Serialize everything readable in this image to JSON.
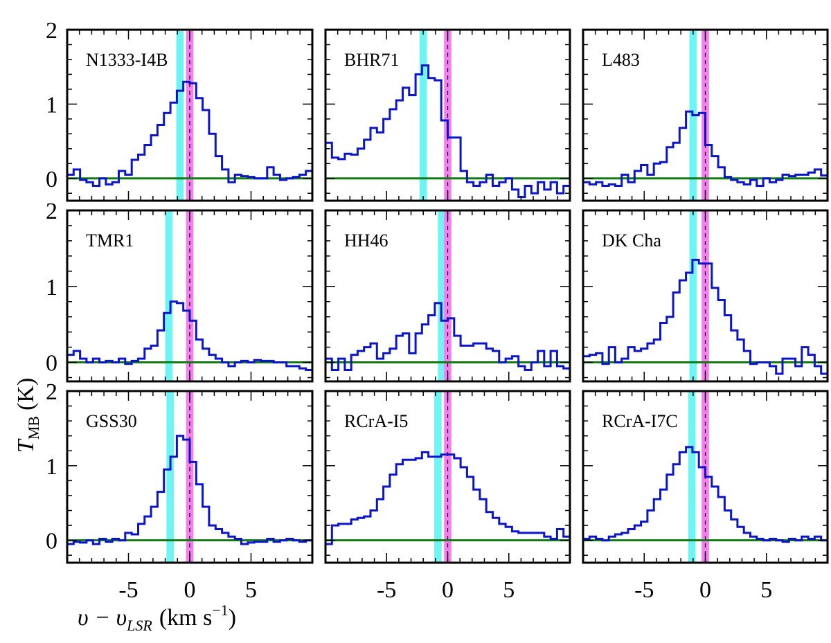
{
  "chart_data": {
    "type": "line",
    "layout": "3x3 grid of step spectra",
    "x_axis": {
      "label_main": "υ − υ",
      "label_sub": "LSR",
      "label_unit": "(km s",
      "label_exp": "−1",
      "label_close": ")",
      "range": [
        -10,
        10
      ],
      "ticks": [
        -5,
        0,
        5
      ],
      "tick_labels": [
        "-5",
        "0",
        "5"
      ]
    },
    "y_axis": {
      "label_main": "T",
      "label_sub": "MB",
      "label_unit": "(K)",
      "ticks": [
        0,
        1,
        2
      ],
      "tick_labels": [
        "0",
        "1",
        "2"
      ]
    },
    "colors": {
      "spectrum": "#0a14c8",
      "baseline": "#137a13",
      "cyan_band": "#6ff4f4",
      "magenta_band": "#f57ff0",
      "frame": "#000000"
    },
    "band_width_kms": 0.6,
    "panels": [
      {
        "name": "N1333-I4B",
        "ylim": [
          -0.3,
          2.0
        ],
        "cyan_v": -0.8,
        "magenta_v": 0.0,
        "y": [
          0.05,
          0.12,
          -0.02,
          -0.05,
          -0.1,
          0.0,
          -0.08,
          -0.05,
          0.1,
          0.05,
          0.25,
          0.32,
          0.45,
          0.58,
          0.72,
          0.88,
          1.02,
          1.18,
          1.3,
          1.28,
          1.08,
          0.92,
          0.6,
          0.3,
          0.12,
          -0.05,
          0.05,
          0.03,
          0.02,
          0.0,
          0.0,
          0.15,
          0.05,
          -0.02,
          0.0,
          0.02,
          0.05,
          0.1
        ]
      },
      {
        "name": "BHR71",
        "ylim": [
          -0.3,
          2.0
        ],
        "cyan_v": -2.0,
        "magenta_v": 0.0,
        "y": [
          0.48,
          0.28,
          0.26,
          0.33,
          0.32,
          0.4,
          0.52,
          0.68,
          0.62,
          0.8,
          0.93,
          1.05,
          1.22,
          1.12,
          1.4,
          1.52,
          1.35,
          1.32,
          0.78,
          0.55,
          0.55,
          0.1,
          -0.05,
          -0.1,
          -0.05,
          0.05,
          -0.1,
          -0.05,
          0.0,
          -0.15,
          -0.25,
          -0.1,
          -0.2,
          -0.05,
          -0.15,
          -0.05,
          -0.2,
          -0.1
        ]
      },
      {
        "name": "L483",
        "ylim": [
          -0.3,
          2.0
        ],
        "cyan_v": -1.0,
        "magenta_v": 0.0,
        "y": [
          -0.05,
          -0.08,
          -0.05,
          -0.1,
          -0.08,
          -0.1,
          0.05,
          -0.05,
          0.1,
          0.18,
          0.05,
          0.2,
          0.22,
          0.42,
          0.48,
          0.68,
          0.9,
          0.85,
          0.88,
          0.45,
          0.3,
          0.15,
          0.02,
          -0.02,
          -0.05,
          -0.08,
          -0.02,
          -0.1,
          0.0,
          -0.05,
          -0.02,
          0.05,
          0.03,
          0.05,
          0.05,
          0.08,
          0.12,
          0.04
        ]
      },
      {
        "name": "TMR1",
        "ylim": [
          -0.25,
          2.0
        ],
        "cyan_v": -1.7,
        "magenta_v": 0.0,
        "y": [
          0.1,
          0.15,
          0.05,
          0.0,
          0.05,
          0.0,
          0.02,
          0.0,
          0.05,
          -0.02,
          0.02,
          0.05,
          0.18,
          0.22,
          0.42,
          0.65,
          0.8,
          0.78,
          0.68,
          0.55,
          0.3,
          0.18,
          0.1,
          0.05,
          0.0,
          -0.05,
          0.0,
          0.02,
          0.0,
          0.03,
          0.02,
          0.02,
          0.0,
          0.0,
          -0.05,
          -0.05,
          -0.08,
          -0.1
        ]
      },
      {
        "name": "HH46",
        "ylim": [
          -0.25,
          2.0
        ],
        "cyan_v": -0.5,
        "magenta_v": 0.0,
        "y": [
          0.05,
          -0.1,
          0.05,
          -0.1,
          0.1,
          0.15,
          0.2,
          0.25,
          0.05,
          0.12,
          0.18,
          0.35,
          0.38,
          0.12,
          0.38,
          0.5,
          0.62,
          0.78,
          0.55,
          0.58,
          0.35,
          0.22,
          0.22,
          0.25,
          0.25,
          0.18,
          0.15,
          0.0,
          0.05,
          0.08,
          -0.05,
          -0.1,
          0.0,
          0.15,
          -0.05,
          0.15,
          -0.05,
          -0.08
        ]
      },
      {
        "name": "DK Cha",
        "ylim": [
          -0.25,
          2.0
        ],
        "cyan_v": -1.0,
        "magenta_v": 0.0,
        "y": [
          0.08,
          0.1,
          0.12,
          -0.02,
          0.2,
          0.0,
          0.05,
          0.2,
          0.15,
          0.18,
          0.25,
          0.3,
          0.52,
          0.6,
          0.92,
          1.08,
          1.18,
          1.35,
          1.3,
          1.3,
          0.98,
          0.82,
          0.62,
          0.42,
          0.3,
          0.15,
          -0.02,
          0.0,
          0.0,
          -0.05,
          -0.15,
          0.05,
          0.05,
          -0.05,
          0.2,
          0.1,
          -0.05,
          -0.15
        ]
      },
      {
        "name": "GSS30",
        "ylim": [
          -0.3,
          2.0
        ],
        "cyan_v": -1.6,
        "magenta_v": 0.0,
        "y": [
          -0.05,
          -0.02,
          -0.03,
          0.0,
          -0.05,
          0.02,
          -0.02,
          0.02,
          0.0,
          0.1,
          0.08,
          0.22,
          0.32,
          0.45,
          0.65,
          0.95,
          1.12,
          1.4,
          1.35,
          1.05,
          0.75,
          0.45,
          0.2,
          0.15,
          0.1,
          0.05,
          0.02,
          -0.05,
          -0.03,
          -0.02,
          -0.02,
          0.02,
          -0.02,
          0.0,
          0.02,
          0.0,
          -0.02,
          0.0
        ]
      },
      {
        "name": "RCrA-I5",
        "ylim": [
          -0.3,
          2.0
        ],
        "cyan_v": -0.8,
        "magenta_v": 0.0,
        "y": [
          -0.05,
          0.2,
          0.22,
          0.22,
          0.28,
          0.3,
          0.32,
          0.4,
          0.55,
          0.72,
          0.88,
          1.02,
          1.08,
          1.08,
          1.1,
          1.18,
          1.12,
          1.12,
          1.15,
          1.15,
          1.1,
          0.98,
          0.85,
          0.68,
          0.55,
          0.38,
          0.3,
          0.22,
          0.18,
          0.12,
          0.1,
          0.1,
          0.1,
          0.1,
          0.05,
          0.02,
          0.15,
          0.05
        ]
      },
      {
        "name": "RCrA-I7C",
        "ylim": [
          -0.3,
          2.0
        ],
        "cyan_v": -1.1,
        "magenta_v": 0.0,
        "y": [
          0.02,
          0.05,
          0.02,
          0.0,
          0.05,
          0.08,
          0.1,
          0.15,
          0.2,
          0.25,
          0.4,
          0.55,
          0.68,
          0.88,
          1.02,
          1.18,
          1.25,
          1.18,
          0.98,
          0.85,
          0.72,
          0.58,
          0.4,
          0.28,
          0.18,
          0.1,
          0.05,
          0.02,
          0.0,
          0.02,
          0.0,
          -0.02,
          0.02,
          0.0,
          0.05,
          0.02,
          0.05,
          0.0
        ]
      }
    ]
  }
}
